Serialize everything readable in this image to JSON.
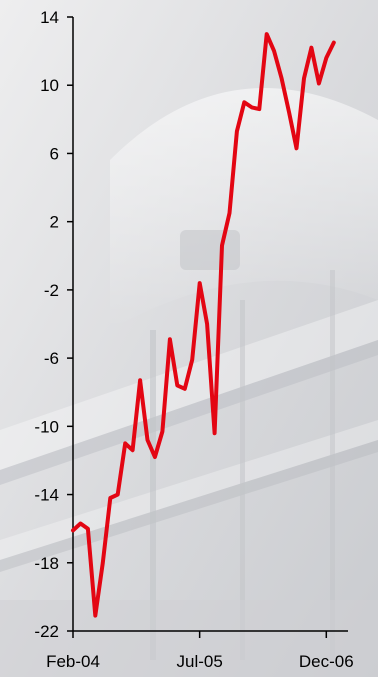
{
  "chart_data": {
    "type": "line",
    "title": "",
    "xlabel": "",
    "ylabel": "",
    "ylim": [
      -22,
      14
    ],
    "yticks": [
      14,
      10,
      6,
      2,
      -2,
      -6,
      -10,
      -14,
      -18,
      -22
    ],
    "xticks": [
      "Feb-04",
      "Jul-05",
      "Dec-06"
    ],
    "grid": false,
    "legend": "none",
    "series": [
      {
        "color": "#e30613",
        "x": [
          "2004-02",
          "2004-03",
          "2004-04",
          "2004-05",
          "2004-06",
          "2004-07",
          "2004-08",
          "2004-09",
          "2004-10",
          "2004-11",
          "2004-12",
          "2005-01",
          "2005-02",
          "2005-03",
          "2005-04",
          "2005-05",
          "2005-06",
          "2005-07",
          "2005-08",
          "2005-09",
          "2005-10",
          "2005-11",
          "2005-12",
          "2006-01",
          "2006-02",
          "2006-03",
          "2006-04",
          "2006-05",
          "2006-06",
          "2006-07",
          "2006-08",
          "2006-09",
          "2006-10",
          "2006-11",
          "2006-12",
          "2007-01"
        ],
        "values": [
          -16.1,
          -15.7,
          -16.0,
          -21.1,
          -18.0,
          -14.2,
          -14.0,
          -11.0,
          -11.4,
          -7.3,
          -10.8,
          -11.8,
          -10.3,
          -4.9,
          -7.6,
          -7.8,
          -6.1,
          -1.6,
          -4.0,
          -10.4,
          0.6,
          2.5,
          7.3,
          9.0,
          8.7,
          8.6,
          13.0,
          12.0,
          10.4,
          8.4,
          6.3,
          10.4,
          12.2,
          10.1,
          11.6,
          12.5
        ]
      }
    ]
  }
}
